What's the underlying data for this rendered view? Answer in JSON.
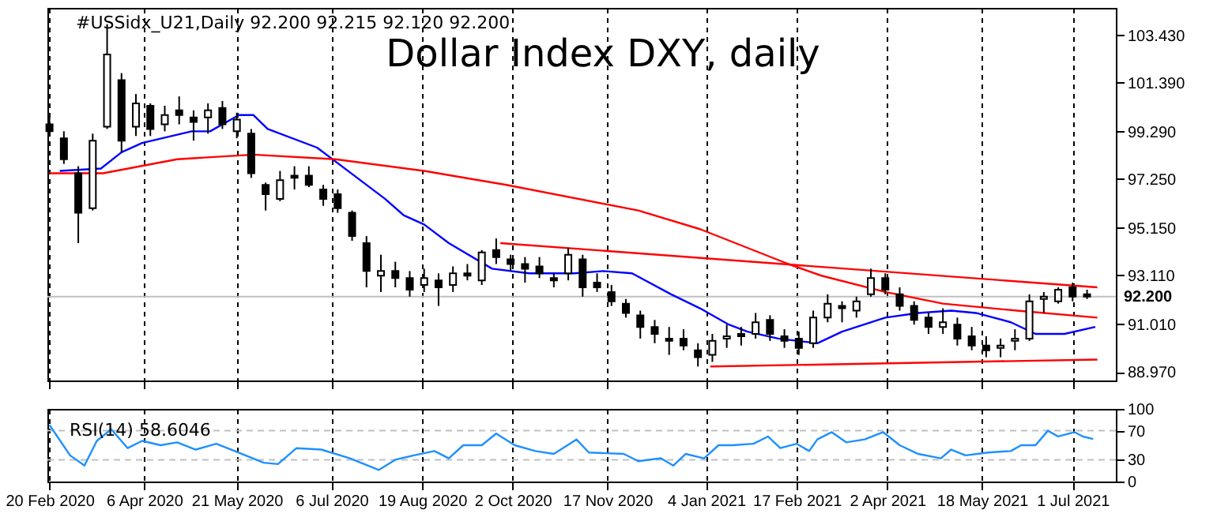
{
  "chart_data": [
    {
      "type": "candlestick",
      "title": "Dollar Index DXY, daily",
      "subtitle": "#USSidx_U21,Daily  92.200 92.215 92.120 92.200",
      "color": "#000000",
      "x": [
        "2020-02-20",
        "2020-02-27",
        "2020-03-05",
        "2020-03-12",
        "2020-03-19",
        "2020-03-26",
        "2020-04-02",
        "2020-04-09",
        "2020-04-16",
        "2020-04-23",
        "2020-04-30",
        "2020-05-07",
        "2020-05-14",
        "2020-05-21",
        "2020-05-28",
        "2020-06-04",
        "2020-06-11",
        "2020-06-18",
        "2020-06-25",
        "2020-07-02",
        "2020-07-09",
        "2020-07-16",
        "2020-07-23",
        "2020-07-30",
        "2020-08-06",
        "2020-08-13",
        "2020-08-20",
        "2020-08-27",
        "2020-09-03",
        "2020-09-10",
        "2020-09-17",
        "2020-09-24",
        "2020-10-01",
        "2020-10-08",
        "2020-10-15",
        "2020-10-22",
        "2020-10-29",
        "2020-11-05",
        "2020-11-12",
        "2020-11-19",
        "2020-11-26",
        "2020-12-03",
        "2020-12-10",
        "2020-12-17",
        "2020-12-24",
        "2020-12-31",
        "2021-01-07",
        "2021-01-14",
        "2021-01-21",
        "2021-01-28",
        "2021-02-04",
        "2021-02-11",
        "2021-02-18",
        "2021-02-25",
        "2021-03-04",
        "2021-03-11",
        "2021-03-18",
        "2021-03-25",
        "2021-04-01",
        "2021-04-08",
        "2021-04-15",
        "2021-04-22",
        "2021-04-29",
        "2021-05-06",
        "2021-05-13",
        "2021-05-20",
        "2021-05-27",
        "2021-06-03",
        "2021-06-10",
        "2021-06-17",
        "2021-06-24",
        "2021-07-01",
        "2021-07-08"
      ],
      "ohlc": [
        [
          99.6,
          99.9,
          99.2,
          99.3
        ],
        [
          99.0,
          99.3,
          97.9,
          98.1
        ],
        [
          97.5,
          97.8,
          94.5,
          95.8
        ],
        [
          96.0,
          99.2,
          95.9,
          98.9
        ],
        [
          99.5,
          103.9,
          99.4,
          102.6
        ],
        [
          101.5,
          101.8,
          98.4,
          98.9
        ],
        [
          99.5,
          100.9,
          99.1,
          100.5
        ],
        [
          100.4,
          100.5,
          99.1,
          99.4
        ],
        [
          99.6,
          100.4,
          99.3,
          100.0
        ],
        [
          100.2,
          100.8,
          99.6,
          100.0
        ],
        [
          99.9,
          100.2,
          98.9,
          99.7
        ],
        [
          99.9,
          100.5,
          99.2,
          100.2
        ],
        [
          100.3,
          100.6,
          99.4,
          99.6
        ],
        [
          99.3,
          100.1,
          99.0,
          99.8
        ],
        [
          99.2,
          99.4,
          97.3,
          97.5
        ],
        [
          97.0,
          97.1,
          95.9,
          96.6
        ],
        [
          96.4,
          97.6,
          96.3,
          97.2
        ],
        [
          97.4,
          97.8,
          96.8,
          97.3
        ],
        [
          97.4,
          97.8,
          96.9,
          97.0
        ],
        [
          96.8,
          97.0,
          96.1,
          96.4
        ],
        [
          96.6,
          96.8,
          95.8,
          96.0
        ],
        [
          95.8,
          95.9,
          94.6,
          94.8
        ],
        [
          94.5,
          94.8,
          92.6,
          93.3
        ],
        [
          93.1,
          94.0,
          92.4,
          93.3
        ],
        [
          93.3,
          93.7,
          92.6,
          93.0
        ],
        [
          93.0,
          93.3,
          92.2,
          92.5
        ],
        [
          92.7,
          93.4,
          92.4,
          93.0
        ],
        [
          92.9,
          93.2,
          91.8,
          92.6
        ],
        [
          92.7,
          93.5,
          92.4,
          93.2
        ],
        [
          93.2,
          93.6,
          92.9,
          93.1
        ],
        [
          92.9,
          94.2,
          92.7,
          94.1
        ],
        [
          94.2,
          94.7,
          93.6,
          93.9
        ],
        [
          93.8,
          94.0,
          93.3,
          93.6
        ],
        [
          93.6,
          93.9,
          92.8,
          93.4
        ],
        [
          93.5,
          93.9,
          93.0,
          93.2
        ],
        [
          93.0,
          93.2,
          92.6,
          92.9
        ],
        [
          93.2,
          94.3,
          92.9,
          94.0
        ],
        [
          93.8,
          94.0,
          92.2,
          92.6
        ],
        [
          92.8,
          93.2,
          92.4,
          92.6
        ],
        [
          92.4,
          92.7,
          91.8,
          92.0
        ],
        [
          91.9,
          92.1,
          91.3,
          91.5
        ],
        [
          91.4,
          91.6,
          90.4,
          90.9
        ],
        [
          90.9,
          91.2,
          90.2,
          90.6
        ],
        [
          90.4,
          90.9,
          89.7,
          90.3
        ],
        [
          90.4,
          90.8,
          89.9,
          90.1
        ],
        [
          89.9,
          90.2,
          89.2,
          89.6
        ],
        [
          89.7,
          90.6,
          89.4,
          90.3
        ],
        [
          90.4,
          91.0,
          90.0,
          90.5
        ],
        [
          90.6,
          90.9,
          90.1,
          90.5
        ],
        [
          90.6,
          91.5,
          90.4,
          91.1
        ],
        [
          91.2,
          91.4,
          90.3,
          90.6
        ],
        [
          90.5,
          90.8,
          90.0,
          90.3
        ],
        [
          90.4,
          90.7,
          89.7,
          90.0
        ],
        [
          90.2,
          91.6,
          90.0,
          91.3
        ],
        [
          91.3,
          92.3,
          91.1,
          91.9
        ],
        [
          91.8,
          92.0,
          91.1,
          91.7
        ],
        [
          91.6,
          92.2,
          91.3,
          92.0
        ],
        [
          92.3,
          93.4,
          92.2,
          93.0
        ],
        [
          93.0,
          93.2,
          92.3,
          92.5
        ],
        [
          92.3,
          92.6,
          91.6,
          91.8
        ],
        [
          91.8,
          92.0,
          91.0,
          91.2
        ],
        [
          91.3,
          91.5,
          90.6,
          90.9
        ],
        [
          90.9,
          91.7,
          90.6,
          91.1
        ],
        [
          91.0,
          91.3,
          90.1,
          90.4
        ],
        [
          90.5,
          90.9,
          89.9,
          90.1
        ],
        [
          90.1,
          90.5,
          89.6,
          89.9
        ],
        [
          90.0,
          90.4,
          89.6,
          90.1
        ],
        [
          90.3,
          90.8,
          89.9,
          90.4
        ],
        [
          90.4,
          92.3,
          90.3,
          92.0
        ],
        [
          92.1,
          92.4,
          91.5,
          92.2
        ],
        [
          92.0,
          92.6,
          91.9,
          92.5
        ],
        [
          92.6,
          92.8,
          92.0,
          92.2
        ],
        [
          92.3,
          92.5,
          92.1,
          92.2
        ]
      ],
      "series": [
        {
          "type": "line",
          "color": "#0000ff",
          "x": [
            "2020-02-25",
            "2020-03-16",
            "2020-03-26",
            "2020-04-05",
            "2020-04-29",
            "2020-05-08",
            "2020-05-22",
            "2020-05-29",
            "2020-06-05",
            "2020-06-29",
            "2020-07-17",
            "2020-08-01",
            "2020-08-10",
            "2020-08-20",
            "2020-09-01",
            "2020-09-22",
            "2020-10-10",
            "2020-11-01",
            "2020-11-15",
            "2020-11-29",
            "2020-12-18",
            "2021-01-01",
            "2021-01-15",
            "2021-01-24",
            "2021-02-08",
            "2021-02-27",
            "2021-03-11",
            "2021-04-01",
            "2021-04-17",
            "2021-05-03",
            "2021-05-15",
            "2021-06-01",
            "2021-06-13",
            "2021-06-27",
            "2021-07-12"
          ],
          "values": [
            97.6,
            97.7,
            98.4,
            98.8,
            99.3,
            99.3,
            100.0,
            100.0,
            99.4,
            98.6,
            97.4,
            96.4,
            95.7,
            95.3,
            94.5,
            93.4,
            93.2,
            93.2,
            93.3,
            93.2,
            92.3,
            91.7,
            91.0,
            90.7,
            90.4,
            90.2,
            90.7,
            91.3,
            91.5,
            91.6,
            91.5,
            91.1,
            90.6,
            90.6,
            90.9
          ]
        },
        {
          "type": "line",
          "color": "#ff0000",
          "x": [
            "2020-02-20",
            "2020-03-17",
            "2020-04-22",
            "2020-05-29",
            "2020-07-08",
            "2020-08-20",
            "2020-09-29",
            "2020-12-02",
            "2021-01-01",
            "2021-02-13",
            "2021-03-01",
            "2021-04-01",
            "2021-04-29",
            "2021-06-04",
            "2021-07-13"
          ],
          "values": [
            97.5,
            97.5,
            98.1,
            98.3,
            98.1,
            97.6,
            97.0,
            95.9,
            95.1,
            93.6,
            93.1,
            92.4,
            91.9,
            91.6,
            91.3
          ]
        },
        {
          "type": "line",
          "color": "#ff0000",
          "x": [
            "2020-09-26",
            "2021-07-13"
          ],
          "values": [
            94.5,
            92.6
          ]
        },
        {
          "type": "line",
          "color": "#ff0000",
          "x": [
            "2021-01-06",
            "2021-07-13"
          ],
          "values": [
            89.2,
            89.5
          ]
        }
      ],
      "ref_lines": [
        {
          "axis": "y",
          "value": 92.2,
          "label": "92.200",
          "color": "#c0c0c0"
        }
      ],
      "xlim": [
        "2020-02-19",
        "2021-07-22"
      ],
      "xticks": [
        "2020-02-20",
        "2020-04-06",
        "2020-05-21",
        "2020-07-06",
        "2020-08-19",
        "2020-10-02",
        "2020-11-17",
        "2021-01-04",
        "2021-02-17",
        "2021-04-02",
        "2021-05-18",
        "2021-07-01"
      ],
      "ylim": [
        88.6,
        104.6
      ],
      "yticks": [
        {
          "value": 88.97,
          "label": "88.970"
        },
        {
          "value": 91.01,
          "label": "91.010"
        },
        {
          "value": 93.11,
          "label": "93.110"
        },
        {
          "value": 95.15,
          "label": "95.150"
        },
        {
          "value": 97.25,
          "label": "97.250"
        },
        {
          "value": 99.29,
          "label": "99.290"
        },
        {
          "value": 101.39,
          "label": "101.390"
        },
        {
          "value": 103.43,
          "label": "103.430"
        }
      ],
      "grid": "x",
      "tick_labels": "y"
    },
    {
      "type": "line",
      "title": "RSI(14) 58.6046",
      "series": [
        {
          "color": "#1e90ff",
          "x": [
            "2020-02-20",
            "2020-03-01",
            "2020-03-08",
            "2020-03-14",
            "2020-03-21",
            "2020-03-29",
            "2020-04-05",
            "2020-04-14",
            "2020-04-22",
            "2020-05-01",
            "2020-05-11",
            "2020-05-20",
            "2020-06-03",
            "2020-06-10",
            "2020-06-19",
            "2020-07-01",
            "2020-07-15",
            "2020-07-29",
            "2020-08-06",
            "2020-08-15",
            "2020-08-25",
            "2020-09-01",
            "2020-09-08",
            "2020-09-17",
            "2020-09-24",
            "2020-10-03",
            "2020-10-13",
            "2020-10-22",
            "2020-11-02",
            "2020-11-08",
            "2020-11-25",
            "2020-12-02",
            "2020-12-13",
            "2020-12-19",
            "2020-12-25",
            "2021-01-03",
            "2021-01-10",
            "2021-01-17",
            "2021-01-27",
            "2021-02-03",
            "2021-02-09",
            "2021-02-17",
            "2021-02-23",
            "2021-02-27",
            "2021-03-06",
            "2021-03-13",
            "2021-03-22",
            "2021-03-31",
            "2021-04-08",
            "2021-04-17",
            "2021-04-28",
            "2021-05-03",
            "2021-05-10",
            "2021-05-21",
            "2021-06-01",
            "2021-06-06",
            "2021-06-13",
            "2021-06-19",
            "2021-06-24",
            "2021-07-02",
            "2021-07-06",
            "2021-07-11"
          ],
          "values": [
            78,
            36,
            22,
            56,
            72,
            46,
            56,
            50,
            54,
            44,
            52,
            42,
            26,
            24,
            46,
            44,
            32,
            16,
            30,
            36,
            42,
            32,
            50,
            50,
            66,
            50,
            42,
            38,
            58,
            40,
            38,
            28,
            32,
            22,
            38,
            32,
            50,
            50,
            52,
            62,
            46,
            52,
            42,
            58,
            68,
            54,
            58,
            68,
            50,
            38,
            32,
            44,
            36,
            40,
            42,
            50,
            50,
            70,
            62,
            68,
            62,
            58.6
          ]
        }
      ],
      "ref_lines": [
        {
          "axis": "y",
          "value": 30,
          "color": "#c0c0c0",
          "line_style": "dashed"
        },
        {
          "axis": "y",
          "value": 70,
          "color": "#c0c0c0",
          "line_style": "dashed"
        }
      ],
      "xlim": [
        "2020-02-19",
        "2021-07-22"
      ],
      "xticks": [
        {
          "value": "2020-02-20",
          "label": "20 Feb 2020"
        },
        {
          "value": "2020-04-06",
          "label": "6 Apr 2020"
        },
        {
          "value": "2020-05-21",
          "label": "21 May 2020"
        },
        {
          "value": "2020-07-06",
          "label": "6 Jul 2020"
        },
        {
          "value": "2020-08-19",
          "label": "19 Aug 2020"
        },
        {
          "value": "2020-10-02",
          "label": "2 Oct 2020"
        },
        {
          "value": "2020-11-17",
          "label": "17 Nov 2020"
        },
        {
          "value": "2021-01-04",
          "label": "4 Jan 2021"
        },
        {
          "value": "2021-02-17",
          "label": "17 Feb 2021"
        },
        {
          "value": "2021-04-02",
          "label": "2 Apr 2021"
        },
        {
          "value": "2021-05-18",
          "label": "18 May 2021"
        },
        {
          "value": "2021-07-01",
          "label": "1 Jul 2021"
        }
      ],
      "ylim": [
        0,
        100
      ],
      "yticks": [
        0,
        30,
        70,
        100
      ],
      "grid": "x"
    }
  ]
}
